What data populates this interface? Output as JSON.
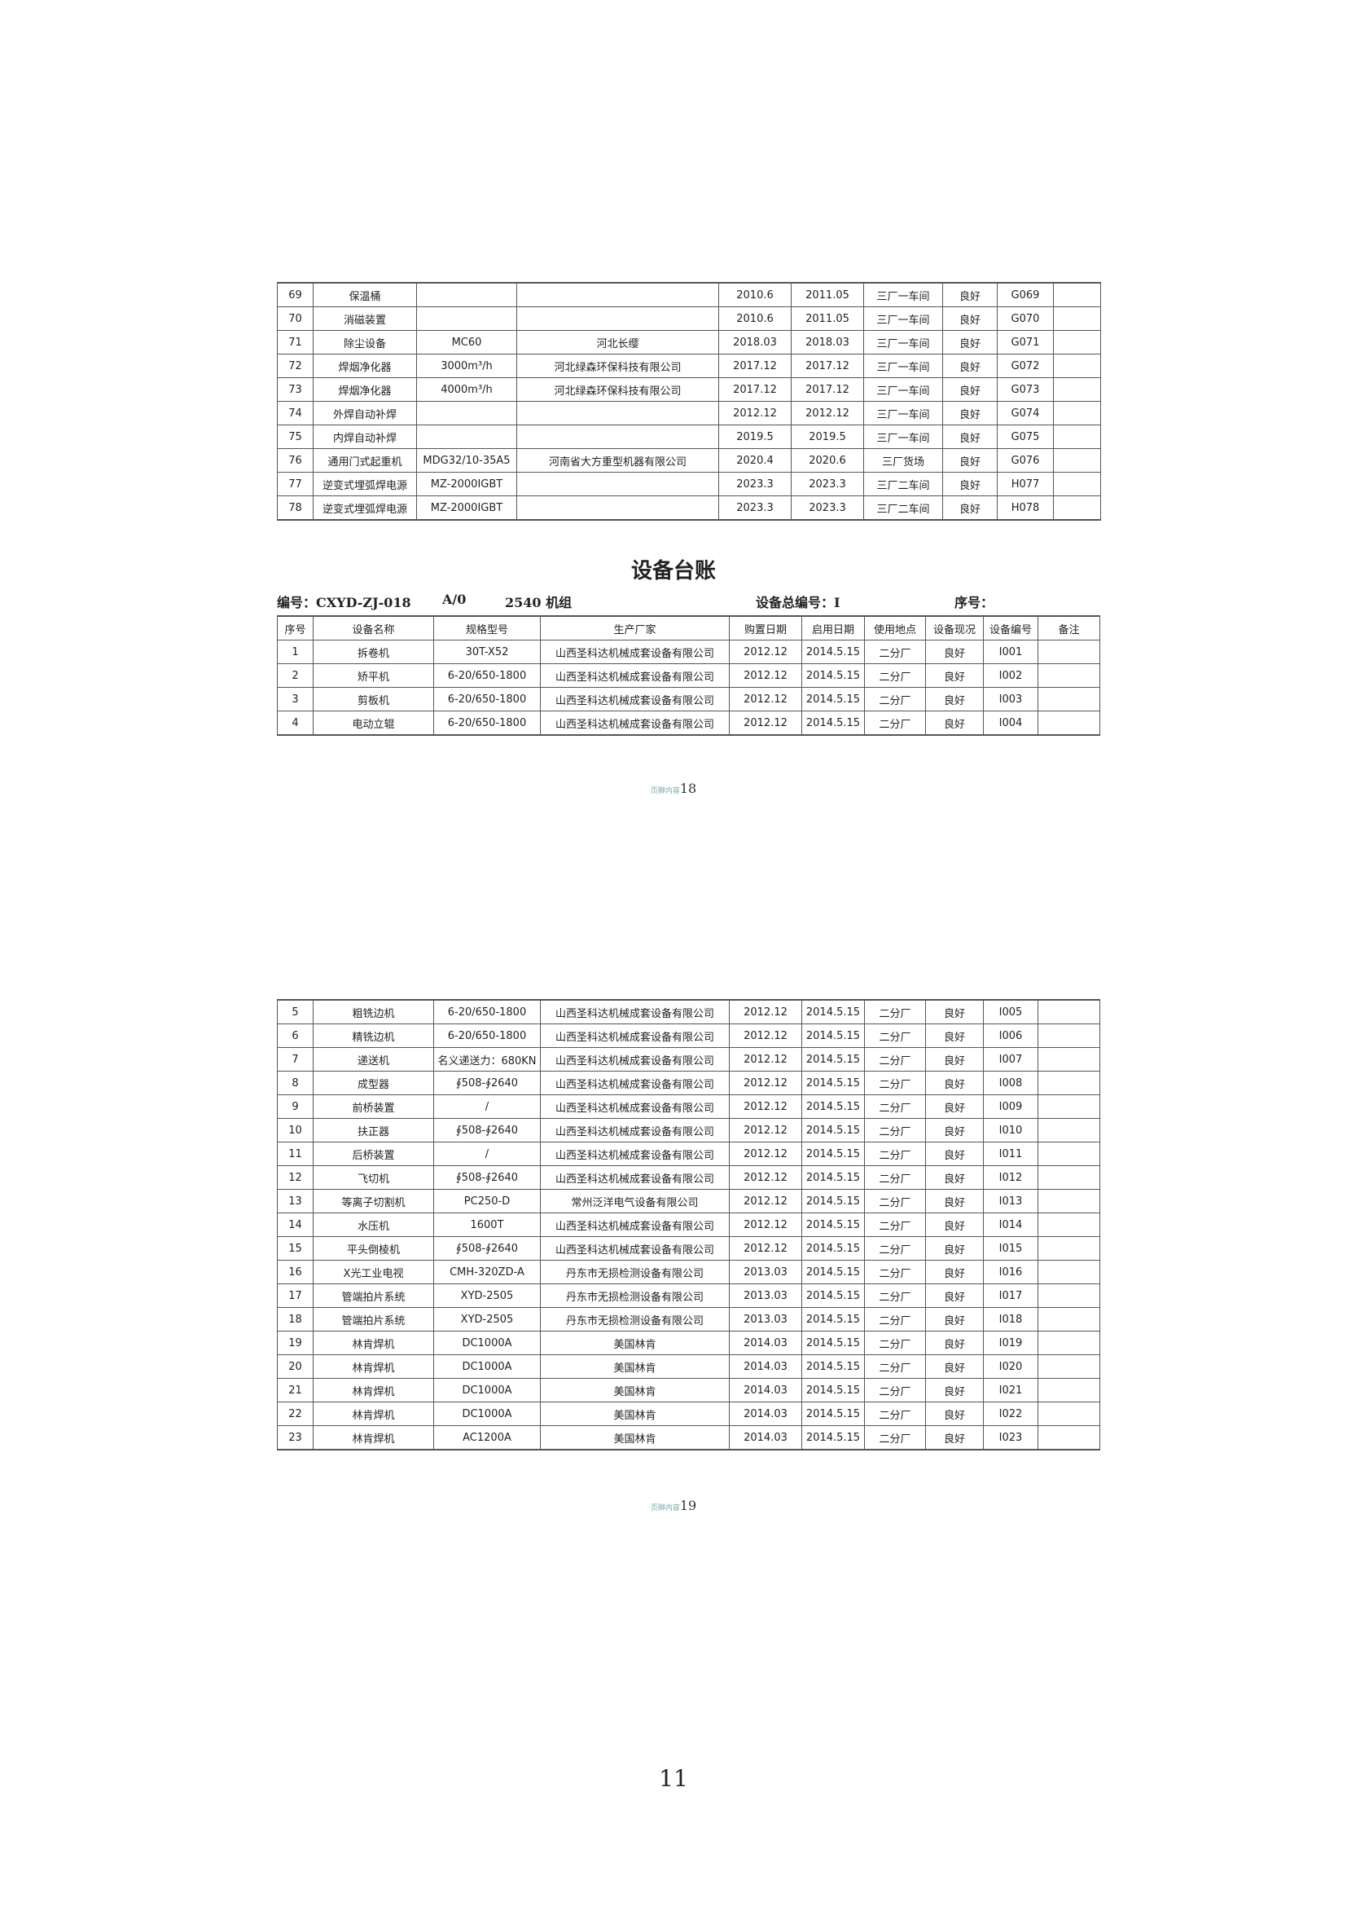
{
  "table1": {
    "rows": [
      [
        "69",
        "保温桶",
        "",
        "",
        "2010.6",
        "2011.05",
        "三厂一车间",
        "良好",
        "G069",
        ""
      ],
      [
        "70",
        "消磁装置",
        "",
        "",
        "2010.6",
        "2011.05",
        "三厂一车间",
        "良好",
        "G070",
        ""
      ],
      [
        "71",
        "除尘设备",
        "MC60",
        "河北长缨",
        "2018.03",
        "2018.03",
        "三厂一车间",
        "良好",
        "G071",
        ""
      ],
      [
        "72",
        "焊烟净化器",
        "3000m³/h",
        "河北绿森环保科技有限公司",
        "2017.12",
        "2017.12",
        "三厂一车间",
        "良好",
        "G072",
        ""
      ],
      [
        "73",
        "焊烟净化器",
        "4000m³/h",
        "河北绿森环保科技有限公司",
        "2017.12",
        "2017.12",
        "三厂一车间",
        "良好",
        "G073",
        ""
      ],
      [
        "74",
        "外焊自动补焊",
        "",
        "",
        "2012.12",
        "2012.12",
        "三厂一车间",
        "良好",
        "G074",
        ""
      ],
      [
        "75",
        "内焊自动补焊",
        "",
        "",
        "2019.5",
        "2019.5",
        "三厂一车间",
        "良好",
        "G075",
        ""
      ],
      [
        "76",
        "通用门式起重机",
        "MDG32/10-35A5",
        "河南省大方重型机器有限公司",
        "2020.4",
        "2020.6",
        "三厂货场",
        "良好",
        "G076",
        ""
      ],
      [
        "77",
        "逆变式埋弧焊电源",
        "MZ-2000IGBT",
        "",
        "2023.3",
        "2023.3",
        "三厂二车间",
        "良好",
        "H077",
        ""
      ],
      [
        "78",
        "逆变式埋弧焊电源",
        "MZ-2000IGBT",
        "",
        "2023.3",
        "2023.3",
        "三厂二车间",
        "良好",
        "H078",
        ""
      ]
    ]
  },
  "title": "设备台账",
  "meta": {
    "code": "编号：CXYD-ZJ-018",
    "version": "A/0",
    "unit": "2540 机组",
    "total_no": "设备总编号：I",
    "seq": "序号："
  },
  "table2": {
    "headers": [
      "序号",
      "设备名称",
      "规格型号",
      "生产厂家",
      "购置日期",
      "启用日期",
      "使用地点",
      "设备现况",
      "设备编号",
      "备注"
    ],
    "rows": [
      [
        "1",
        "拆卷机",
        "30T-X52",
        "山西圣科达机械成套设备有限公司",
        "2012.12",
        "2014.5.15",
        "二分厂",
        "良好",
        "I001",
        ""
      ],
      [
        "2",
        "矫平机",
        "6-20/650-1800",
        "山西圣科达机械成套设备有限公司",
        "2012.12",
        "2014.5.15",
        "二分厂",
        "良好",
        "I002",
        ""
      ],
      [
        "3",
        "剪板机",
        "6-20/650-1800",
        "山西圣科达机械成套设备有限公司",
        "2012.12",
        "2014.5.15",
        "二分厂",
        "良好",
        "I003",
        ""
      ],
      [
        "4",
        "电动立辊",
        "6-20/650-1800",
        "山西圣科达机械成套设备有限公司",
        "2012.12",
        "2014.5.15",
        "二分厂",
        "良好",
        "I004",
        ""
      ]
    ]
  },
  "footer1": {
    "label": "页脚内容",
    "num": "18"
  },
  "table3": {
    "rows": [
      [
        "5",
        "粗铣边机",
        "6-20/650-1800",
        "山西圣科达机械成套设备有限公司",
        "2012.12",
        "2014.5.15",
        "二分厂",
        "良好",
        "I005",
        ""
      ],
      [
        "6",
        "精铣边机",
        "6-20/650-1800",
        "山西圣科达机械成套设备有限公司",
        "2012.12",
        "2014.5.15",
        "二分厂",
        "良好",
        "I006",
        ""
      ],
      [
        "7",
        "递送机",
        "名义递送力：680KN",
        "山西圣科达机械成套设备有限公司",
        "2012.12",
        "2014.5.15",
        "二分厂",
        "良好",
        "I007",
        ""
      ],
      [
        "8",
        "成型器",
        "∮508-∮2640",
        "山西圣科达机械成套设备有限公司",
        "2012.12",
        "2014.5.15",
        "二分厂",
        "良好",
        "I008",
        ""
      ],
      [
        "9",
        "前桥装置",
        "/",
        "山西圣科达机械成套设备有限公司",
        "2012.12",
        "2014.5.15",
        "二分厂",
        "良好",
        "I009",
        ""
      ],
      [
        "10",
        "扶正器",
        "∮508-∮2640",
        "山西圣科达机械成套设备有限公司",
        "2012.12",
        "2014.5.15",
        "二分厂",
        "良好",
        "I010",
        ""
      ],
      [
        "11",
        "后桥装置",
        "/",
        "山西圣科达机械成套设备有限公司",
        "2012.12",
        "2014.5.15",
        "二分厂",
        "良好",
        "I011",
        ""
      ],
      [
        "12",
        "飞切机",
        "∮508-∮2640",
        "山西圣科达机械成套设备有限公司",
        "2012.12",
        "2014.5.15",
        "二分厂",
        "良好",
        "I012",
        ""
      ],
      [
        "13",
        "等离子切割机",
        "PC250-D",
        "常州泛洋电气设备有限公司",
        "2012.12",
        "2014.5.15",
        "二分厂",
        "良好",
        "I013",
        ""
      ],
      [
        "14",
        "水压机",
        "1600T",
        "山西圣科达机械成套设备有限公司",
        "2012.12",
        "2014.5.15",
        "二分厂",
        "良好",
        "I014",
        ""
      ],
      [
        "15",
        "平头倒棱机",
        "∮508-∮2640",
        "山西圣科达机械成套设备有限公司",
        "2012.12",
        "2014.5.15",
        "二分厂",
        "良好",
        "I015",
        ""
      ],
      [
        "16",
        "X光工业电视",
        "CMH-320ZD-A",
        "丹东市无损检测设备有限公司",
        "2013.03",
        "2014.5.15",
        "二分厂",
        "良好",
        "I016",
        ""
      ],
      [
        "17",
        "管端拍片系统",
        "XYD-2505",
        "丹东市无损检测设备有限公司",
        "2013.03",
        "2014.5.15",
        "二分厂",
        "良好",
        "I017",
        ""
      ],
      [
        "18",
        "管端拍片系统",
        "XYD-2505",
        "丹东市无损检测设备有限公司",
        "2013.03",
        "2014.5.15",
        "二分厂",
        "良好",
        "I018",
        ""
      ],
      [
        "19",
        "林肯焊机",
        "DC1000A",
        "美国林肯",
        "2014.03",
        "2014.5.15",
        "二分厂",
        "良好",
        "I019",
        ""
      ],
      [
        "20",
        "林肯焊机",
        "DC1000A",
        "美国林肯",
        "2014.03",
        "2014.5.15",
        "二分厂",
        "良好",
        "I020",
        ""
      ],
      [
        "21",
        "林肯焊机",
        "DC1000A",
        "美国林肯",
        "2014.03",
        "2014.5.15",
        "二分厂",
        "良好",
        "I021",
        ""
      ],
      [
        "22",
        "林肯焊机",
        "DC1000A",
        "美国林肯",
        "2014.03",
        "2014.5.15",
        "二分厂",
        "良好",
        "I022",
        ""
      ],
      [
        "23",
        "林肯焊机",
        "AC1200A",
        "美国林肯",
        "2014.03",
        "2014.5.15",
        "二分厂",
        "良好",
        "I023",
        ""
      ]
    ]
  },
  "footer2": {
    "label": "页脚内容",
    "num": "19"
  },
  "page_number": "11"
}
